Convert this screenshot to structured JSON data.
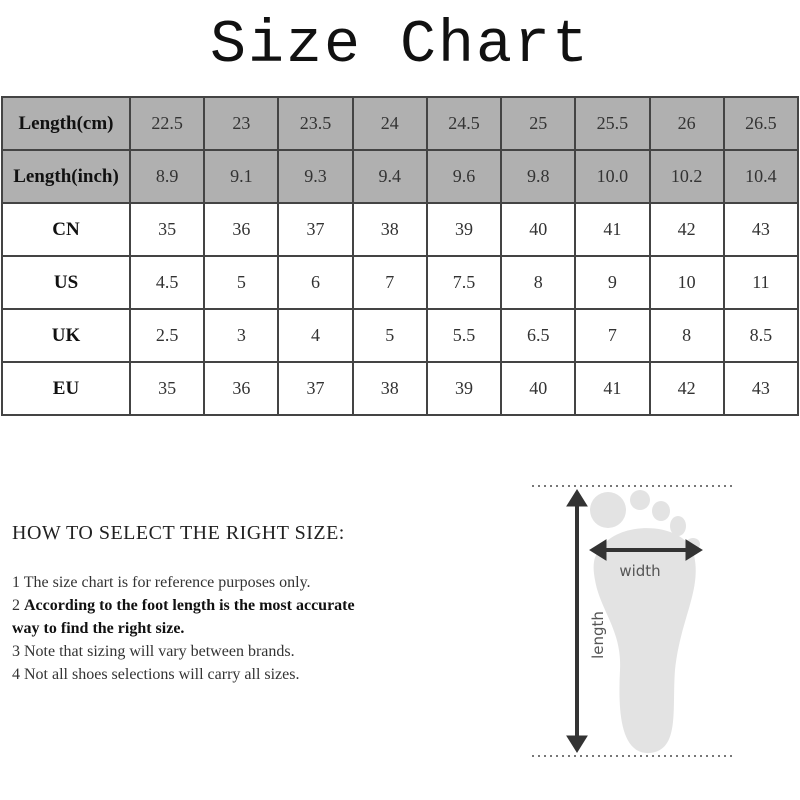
{
  "title": "Size Chart",
  "table": {
    "rows": [
      {
        "label": "Length(cm)",
        "style": "gray",
        "values": [
          "22.5",
          "23",
          "23.5",
          "24",
          "24.5",
          "25",
          "25.5",
          "26",
          "26.5"
        ]
      },
      {
        "label": "Length(inch)",
        "style": "gray",
        "values": [
          "8.9",
          "9.1",
          "9.3",
          "9.4",
          "9.6",
          "9.8",
          "10.0",
          "10.2",
          "10.4"
        ]
      },
      {
        "label": "CN",
        "style": "white",
        "values": [
          "35",
          "36",
          "37",
          "38",
          "39",
          "40",
          "41",
          "42",
          "43"
        ]
      },
      {
        "label": "US",
        "style": "white",
        "values": [
          "4.5",
          "5",
          "6",
          "7",
          "7.5",
          "8",
          "9",
          "10",
          "11"
        ]
      },
      {
        "label": "UK",
        "style": "white",
        "values": [
          "2.5",
          "3",
          "4",
          "5",
          "5.5",
          "6.5",
          "7",
          "8",
          "8.5"
        ]
      },
      {
        "label": "EU",
        "style": "white",
        "values": [
          "35",
          "36",
          "37",
          "38",
          "39",
          "40",
          "41",
          "42",
          "43"
        ]
      }
    ]
  },
  "guide": {
    "heading": "HOW TO SELECT THE RIGHT SIZE:",
    "notes": [
      {
        "num": "1",
        "text": "The size chart is for reference purposes only.",
        "bold": false
      },
      {
        "num": "2",
        "text": "According to the foot length is the most accurate way to find the right size.",
        "bold": true
      },
      {
        "num": "3",
        "text": "Note that sizing will vary between brands.",
        "bold": false
      },
      {
        "num": "4",
        "text": "Not all shoes selections will carry all sizes.",
        "bold": false
      }
    ]
  },
  "diagram": {
    "width_label": "width",
    "length_label": "length",
    "foot_color": "#e3e3e3",
    "arrow_color": "#333333"
  }
}
